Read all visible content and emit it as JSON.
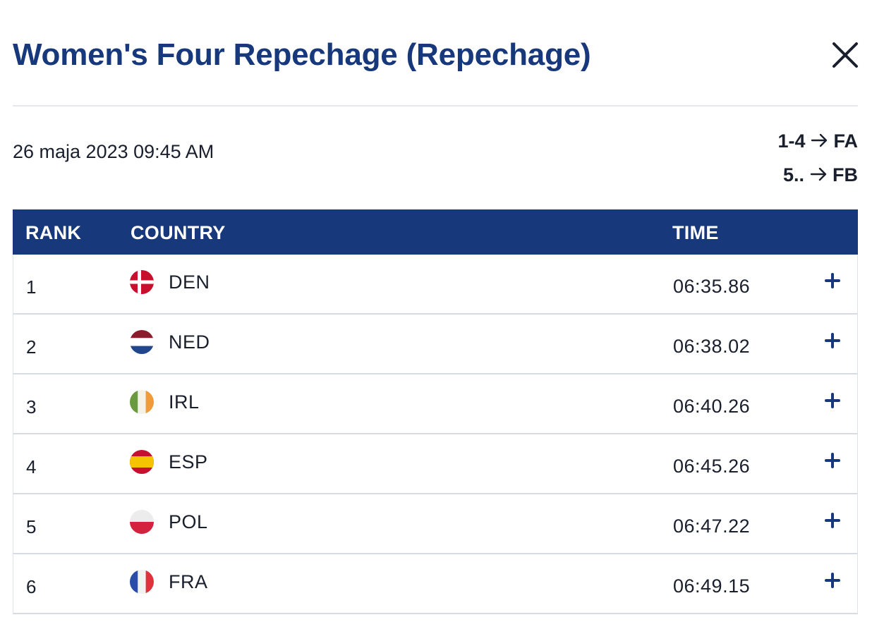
{
  "header": {
    "title": "Women's Four Repechage (Repechage)"
  },
  "meta": {
    "date": "26 maja 2023 09:45 AM",
    "progression": [
      {
        "range": "1-4",
        "to": "FA"
      },
      {
        "range": "5..",
        "to": "FB"
      }
    ]
  },
  "table": {
    "columns": [
      "RANK",
      "COUNTRY",
      "TIME"
    ],
    "rows": [
      {
        "rank": "1",
        "country": "DEN",
        "time": "06:35.86",
        "flag": "denmark-flag"
      },
      {
        "rank": "2",
        "country": "NED",
        "time": "06:38.02",
        "flag": "netherlands-flag"
      },
      {
        "rank": "3",
        "country": "IRL",
        "time": "06:40.26",
        "flag": "ireland-flag"
      },
      {
        "rank": "4",
        "country": "ESP",
        "time": "06:45.26",
        "flag": "spain-flag"
      },
      {
        "rank": "5",
        "country": "POL",
        "time": "06:47.22",
        "flag": "poland-flag"
      },
      {
        "rank": "6",
        "country": "FRA",
        "time": "06:49.15",
        "flag": "france-flag"
      }
    ]
  },
  "colors": {
    "brand_navy": "#17387a",
    "text": "#1a1f2e",
    "divider": "#e6e8ee"
  },
  "icons": {
    "close": "close-icon",
    "expand": "plus-icon",
    "arrow": "arrow-right-icon"
  }
}
